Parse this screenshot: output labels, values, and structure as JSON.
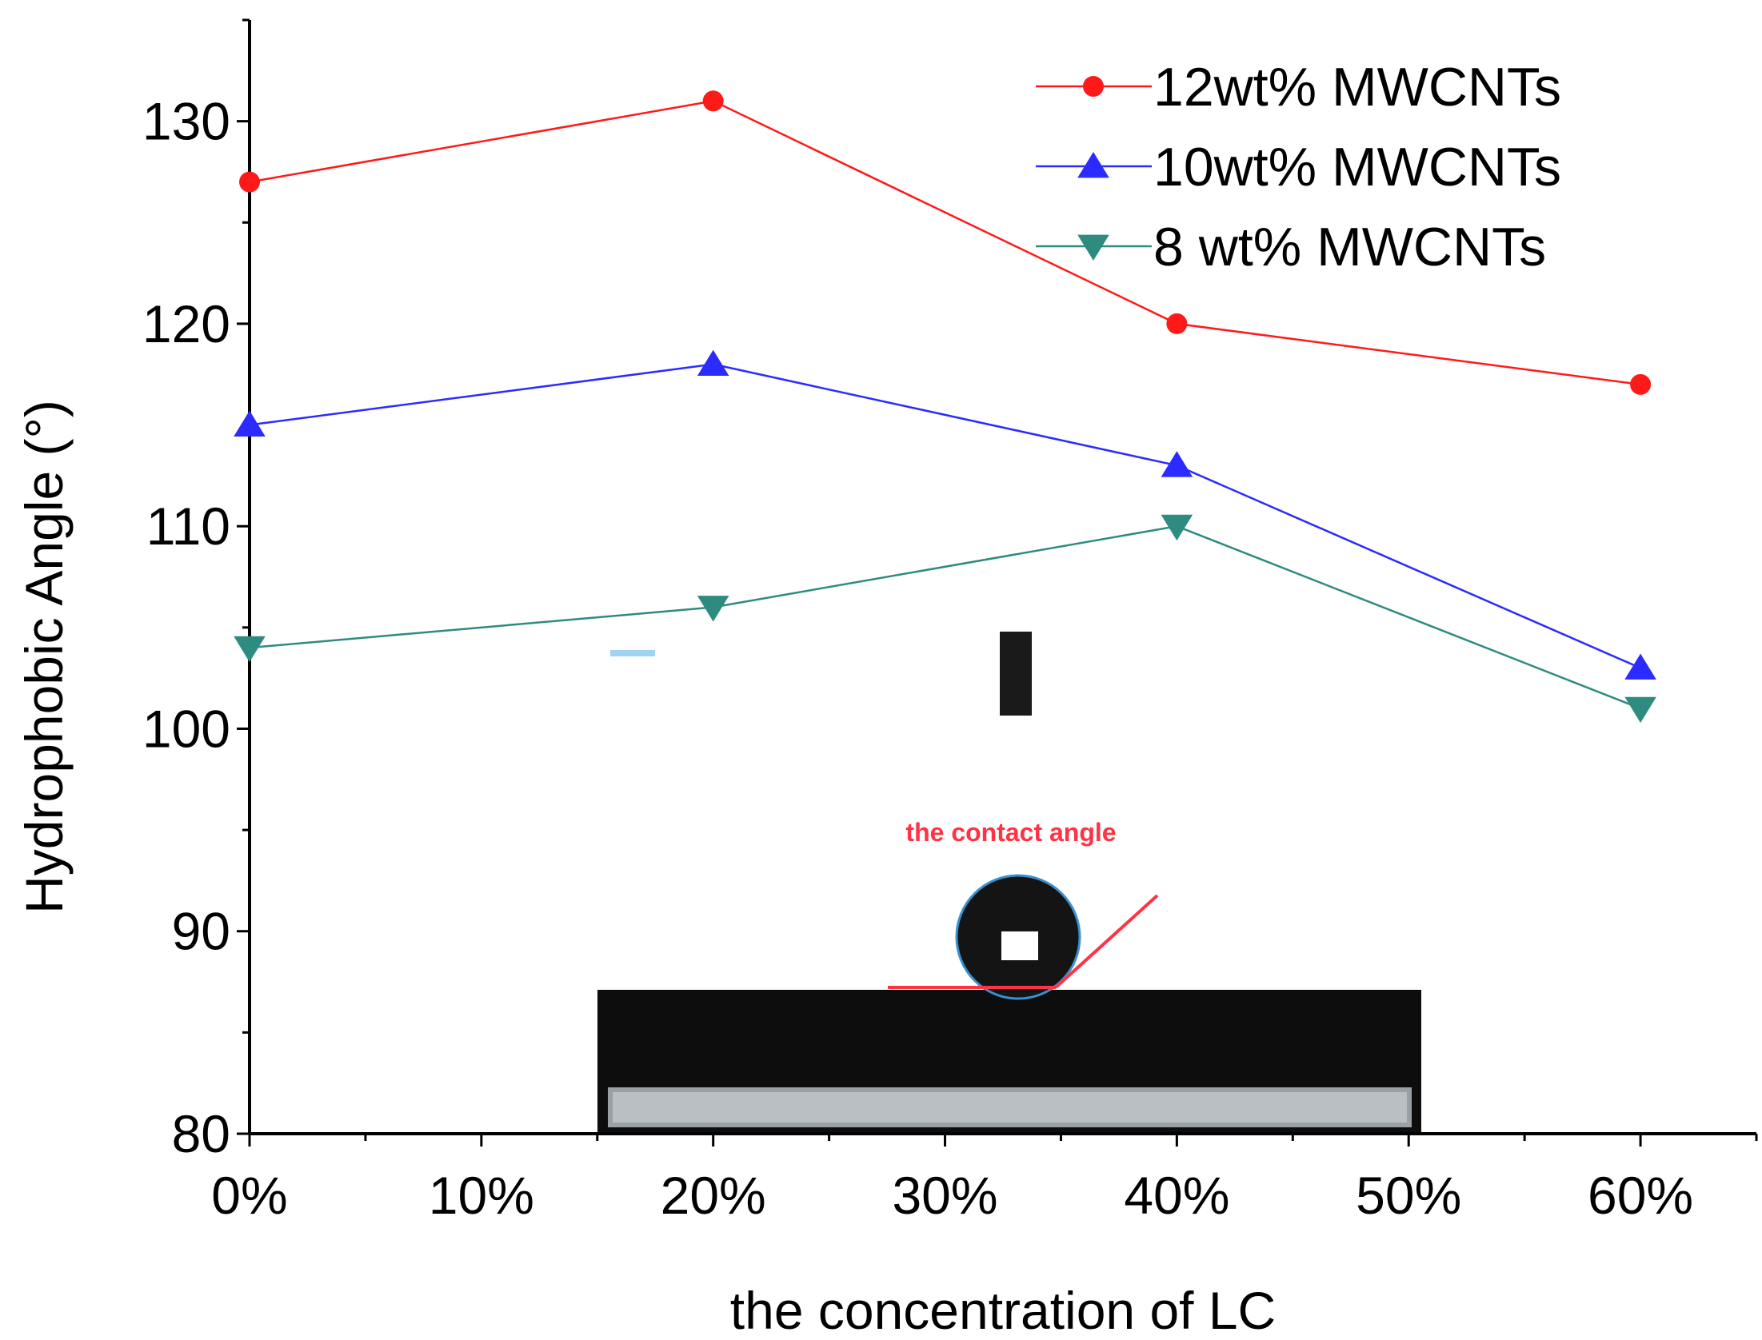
{
  "chart_data": {
    "type": "line",
    "xlabel": "the concentration of LC",
    "ylabel": "Hydrophobic Angle (°)",
    "x_tick_labels": [
      "0%",
      "10%",
      "20%",
      "30%",
      "40%",
      "50%",
      "60%"
    ],
    "x_tick_values": [
      0,
      10,
      20,
      30,
      40,
      50,
      60
    ],
    "y_tick_values": [
      80,
      90,
      100,
      110,
      120,
      130
    ],
    "xlim": [
      0,
      65
    ],
    "ylim": [
      80,
      135
    ],
    "grid": false,
    "legend_position": "top-right",
    "series": [
      {
        "name": "12wt% MWCNTs",
        "color": "#ff1a1a",
        "marker": "circle",
        "x": [
          0,
          20,
          40,
          60
        ],
        "y": [
          127,
          131,
          120,
          117
        ]
      },
      {
        "name": "10wt% MWCNTs",
        "color": "#2b2bff",
        "marker": "triangle-up",
        "x": [
          0,
          20,
          40,
          60
        ],
        "y": [
          115,
          118,
          113,
          103
        ]
      },
      {
        "name": " 8 wt% MWCNTs",
        "color": "#2e8b80",
        "marker": "triangle-down",
        "x": [
          0,
          20,
          40,
          60
        ],
        "y": [
          104,
          106,
          110,
          101
        ]
      }
    ],
    "annotation": "the contact angle"
  }
}
